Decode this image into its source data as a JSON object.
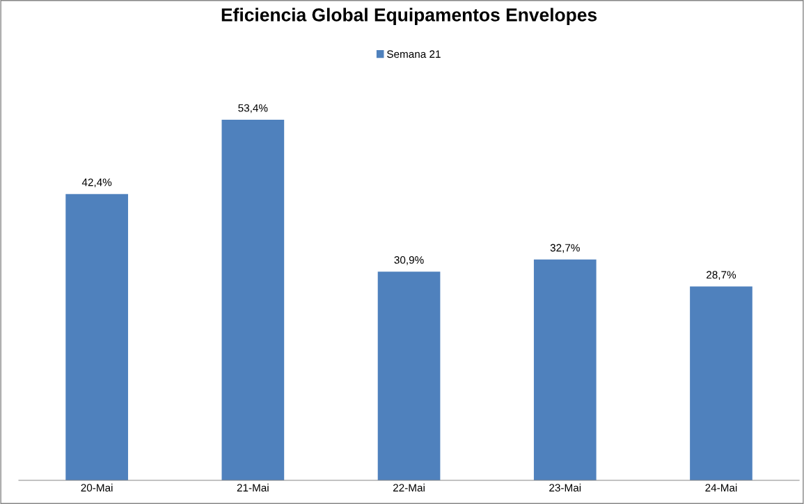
{
  "chart_data": {
    "type": "bar",
    "title": "Eficiencia Global Equipamentos Envelopes",
    "categories": [
      "20-Mai",
      "21-Mai",
      "22-Mai",
      "23-Mai",
      "24-Mai"
    ],
    "series": [
      {
        "name": "Semana 21",
        "color": "#4f81bd",
        "values": [
          42.4,
          53.4,
          30.9,
          32.7,
          28.7
        ],
        "value_labels": [
          "42,4%",
          "53,4%",
          "30,9%",
          "32,7%",
          "28,7%"
        ]
      }
    ],
    "legend": "top",
    "grid": false,
    "tick_labels": "x"
  }
}
